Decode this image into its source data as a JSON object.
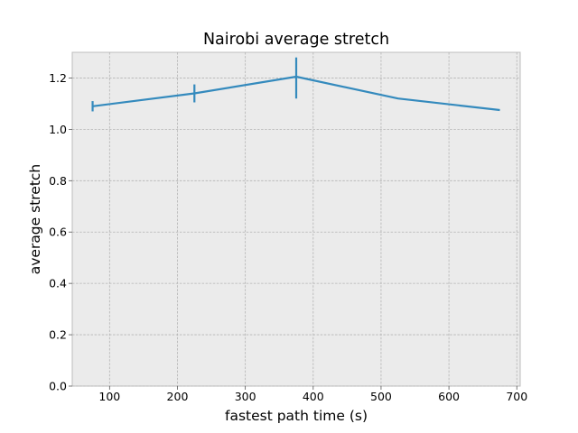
{
  "chart_data": {
    "type": "line",
    "title": "Nairobi average stretch",
    "xlabel": "fastest path time (s)",
    "ylabel": "average stretch",
    "xlim": [
      45,
      705
    ],
    "ylim": [
      0.0,
      1.3
    ],
    "xticks": [
      100,
      200,
      300,
      400,
      500,
      600,
      700
    ],
    "xtick_labels": [
      "100",
      "200",
      "300",
      "400",
      "500",
      "600",
      "700"
    ],
    "yticks": [
      0.0,
      0.2,
      0.4,
      0.6,
      0.8,
      1.0,
      1.2
    ],
    "ytick_labels": [
      "0.0",
      "0.2",
      "0.4",
      "0.6",
      "0.8",
      "1.0",
      "1.2"
    ],
    "grid": true,
    "series": [
      {
        "color": "#348abd",
        "x": [
          75,
          225,
          375,
          525,
          675
        ],
        "y": [
          1.09,
          1.14,
          1.205,
          1.12,
          1.075
        ],
        "yerr_low": [
          0.02,
          0.035,
          0.085,
          null,
          null
        ],
        "yerr_high": [
          0.02,
          0.035,
          0.075,
          null,
          null
        ]
      }
    ]
  }
}
